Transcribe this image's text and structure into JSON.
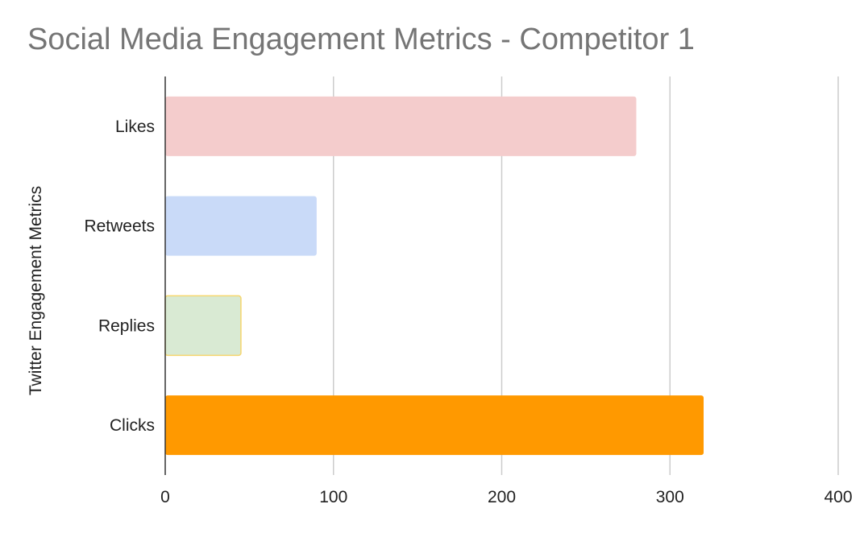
{
  "chart_data": {
    "type": "bar",
    "orientation": "horizontal",
    "title": "Social Media Engagement Metrics - Competitor 1",
    "xlabel": "",
    "ylabel": "Twitter Engagement Metrics",
    "categories": [
      "Likes",
      "Retweets",
      "Replies",
      "Clicks"
    ],
    "values": [
      280,
      90,
      45,
      320
    ],
    "colors": [
      "#f4cccc",
      "#c9daf8",
      "#d9ead3",
      "#ff9900"
    ],
    "xlim": [
      0,
      400
    ],
    "xticks": [
      0,
      100,
      200,
      300,
      400
    ],
    "xtick_labels": [
      "0",
      "100",
      "200",
      "300",
      "400"
    ],
    "grid": true,
    "legend": "none"
  }
}
